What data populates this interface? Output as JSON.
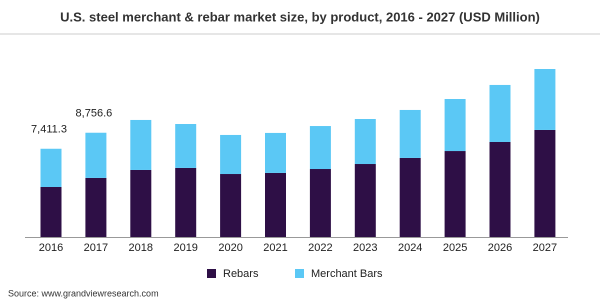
{
  "chart_data": {
    "type": "stacked_bar",
    "title": "U.S. steel merchant & rebar market size, by product, 2016 - 2027 (USD Million)",
    "categories": [
      "2016",
      "2017",
      "2018",
      "2019",
      "2020",
      "2021",
      "2022",
      "2023",
      "2024",
      "2025",
      "2026",
      "2027"
    ],
    "series": [
      {
        "name": "Rebars",
        "color": "#2e0f46",
        "values": [
          4200,
          4960,
          5630,
          5800,
          5290,
          5380,
          5710,
          6130,
          6640,
          7220,
          7980,
          8990
        ]
      },
      {
        "name": "Merchant Bars",
        "color": "#5bc8f5",
        "values": [
          3211.3,
          3796.6,
          4200,
          3690,
          3280,
          3360,
          3610,
          3780,
          4030,
          4370,
          4790,
          5120
        ]
      }
    ],
    "totals": [
      7411.3,
      8756.6,
      null,
      null,
      null,
      null,
      null,
      null,
      null,
      null,
      null,
      null
    ],
    "total_labels": [
      "7,411.3",
      "8,756.6",
      null,
      null,
      null,
      null,
      null,
      null,
      null,
      null,
      null,
      null
    ],
    "source": "Source: www.grandviewresearch.com"
  }
}
